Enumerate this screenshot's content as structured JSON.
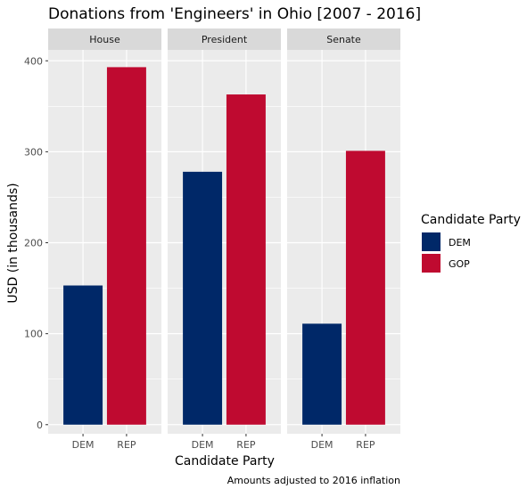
{
  "chart_data": {
    "type": "bar",
    "title": "Donations from 'Engineers' in Ohio [2007 - 2016]",
    "xlabel": "Candidate Party",
    "ylabel": "USD (in thousands)",
    "caption": "Amounts adjusted to 2016 inflation",
    "ylim": [
      -10,
      412
    ],
    "yticks": [
      0,
      100,
      200,
      300,
      400
    ],
    "grid": true,
    "legend": {
      "title": "Candidate Party",
      "placement": "right",
      "entries": [
        {
          "label": "DEM",
          "color": "#002868"
        },
        {
          "label": "GOP",
          "color": "#BF0A30"
        }
      ]
    },
    "categories": [
      "DEM",
      "REP"
    ],
    "category_colors": {
      "DEM": "#002868",
      "REP": "#BF0A30"
    },
    "facets": [
      {
        "name": "House",
        "values": [
          153,
          393
        ]
      },
      {
        "name": "President",
        "values": [
          278,
          363
        ]
      },
      {
        "name": "Senate",
        "values": [
          111,
          301
        ]
      }
    ]
  }
}
